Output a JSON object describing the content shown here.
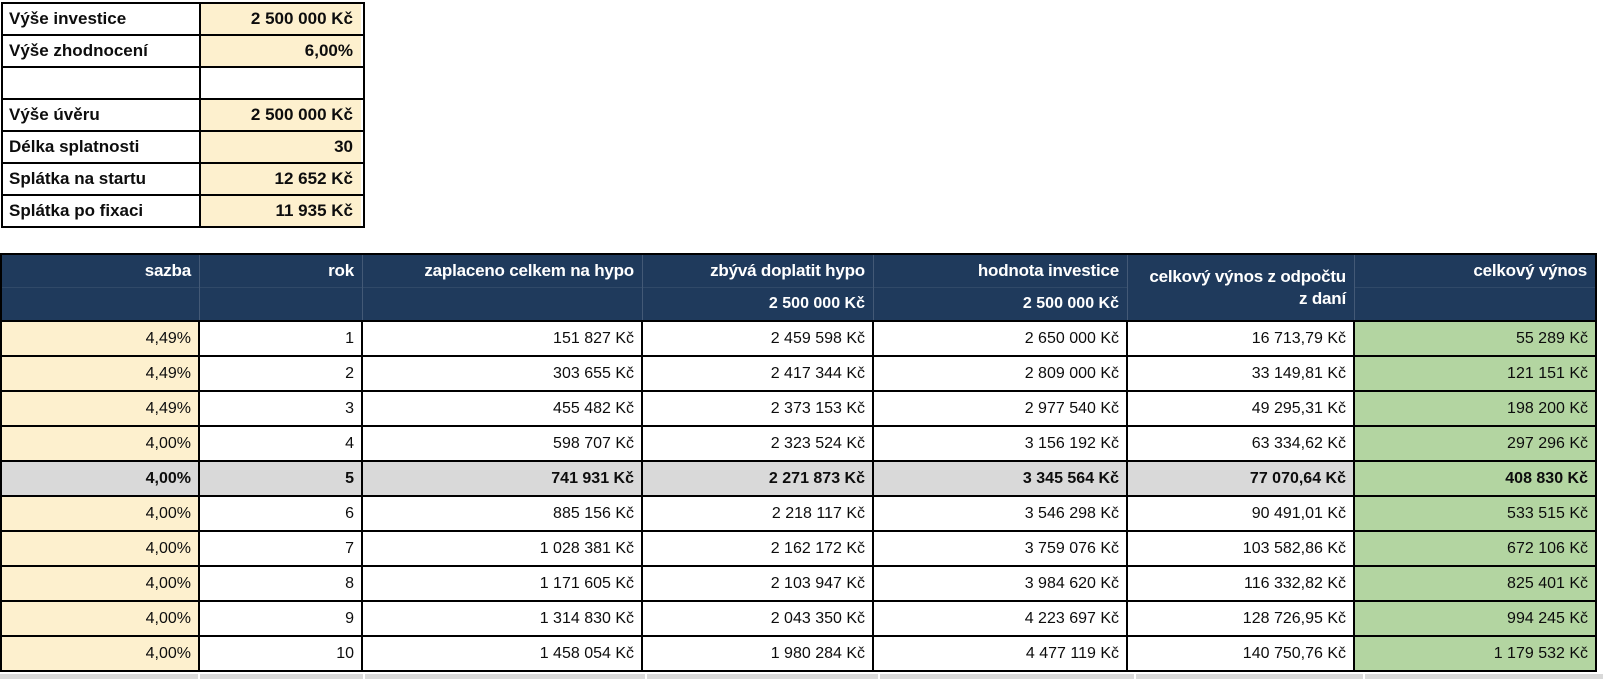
{
  "colors": {
    "header_bg": "#1F3A5C",
    "input_bg": "#FDF0CE",
    "result_bg": "#B3D5A1",
    "highlight_bg": "#D9D9D9"
  },
  "summary_panel": {
    "rows": [
      {
        "label": "Výše investice",
        "value": "2 500 000 Kč"
      },
      {
        "label": "Výše zhodnocení",
        "value": "6,00%"
      },
      {
        "label": "",
        "value": ""
      },
      {
        "label": "Výše úvěru",
        "value": "2 500 000 Kč"
      },
      {
        "label": "Délka splatnosti",
        "value": "30"
      },
      {
        "label": "Splátka na startu",
        "value": "12 652 Kč"
      },
      {
        "label": "Splátka po fixaci",
        "value": "11 935 Kč"
      }
    ]
  },
  "main_table": {
    "headers": [
      "sazba",
      "rok",
      "zaplaceno celkem na hypo",
      "zbývá doplatit hypo",
      "hodnota investice",
      "celkový výnos z odpočtu",
      "celkový výnos"
    ],
    "subheaders": [
      "",
      "",
      "",
      "2 500 000 Kč",
      "2 500 000 Kč",
      "z daní",
      ""
    ],
    "rows": [
      {
        "highlighted": false,
        "cells": [
          "4,49%",
          "1",
          "151 827 Kč",
          "2 459 598 Kč",
          "2 650 000 Kč",
          "16 713,79 Kč",
          "55 289 Kč"
        ]
      },
      {
        "highlighted": false,
        "cells": [
          "4,49%",
          "2",
          "303 655 Kč",
          "2 417 344 Kč",
          "2 809 000 Kč",
          "33 149,81 Kč",
          "121 151 Kč"
        ]
      },
      {
        "highlighted": false,
        "cells": [
          "4,49%",
          "3",
          "455 482 Kč",
          "2 373 153 Kč",
          "2 977 540 Kč",
          "49 295,31 Kč",
          "198 200 Kč"
        ]
      },
      {
        "highlighted": false,
        "cells": [
          "4,00%",
          "4",
          "598 707 Kč",
          "2 323 524 Kč",
          "3 156 192 Kč",
          "63 334,62 Kč",
          "297 296 Kč"
        ]
      },
      {
        "highlighted": true,
        "cells": [
          "4,00%",
          "5",
          "741 931 Kč",
          "2 271 873 Kč",
          "3 345 564 Kč",
          "77 070,64 Kč",
          "408 830 Kč"
        ]
      },
      {
        "highlighted": false,
        "cells": [
          "4,00%",
          "6",
          "885 156 Kč",
          "2 218 117 Kč",
          "3 546 298 Kč",
          "90 491,01 Kč",
          "533 515 Kč"
        ]
      },
      {
        "highlighted": false,
        "cells": [
          "4,00%",
          "7",
          "1 028 381 Kč",
          "2 162 172 Kč",
          "3 759 076 Kč",
          "103 582,86 Kč",
          "672 106 Kč"
        ]
      },
      {
        "highlighted": false,
        "cells": [
          "4,00%",
          "8",
          "1 171 605 Kč",
          "2 103 947 Kč",
          "3 984 620 Kč",
          "116 332,82 Kč",
          "825 401 Kč"
        ]
      },
      {
        "highlighted": false,
        "cells": [
          "4,00%",
          "9",
          "1 314 830 Kč",
          "2 043 350 Kč",
          "4 223 697 Kč",
          "128 726,95 Kč",
          "994 245 Kč"
        ]
      },
      {
        "highlighted": false,
        "cells": [
          "4,00%",
          "10",
          "1 458 054 Kč",
          "1 980 284 Kč",
          "4 477 119 Kč",
          "140 750,76 Kč",
          "1 179 532 Kč"
        ]
      }
    ]
  }
}
